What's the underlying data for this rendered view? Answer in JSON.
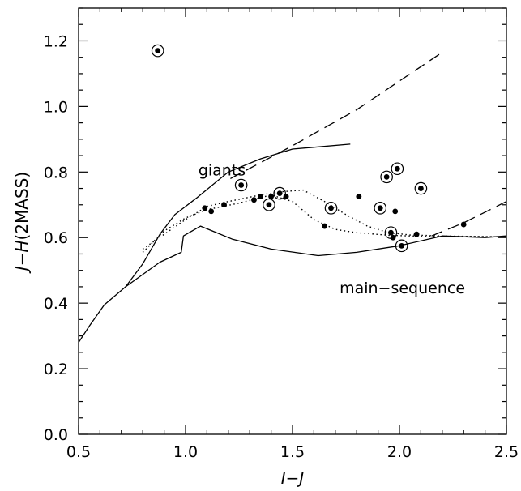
{
  "chart_data": {
    "type": "scatter",
    "title": "",
    "xlabel": "I−J",
    "ylabel_italic": "J−H",
    "ylabel_rest": "(2MASS)",
    "xlim": [
      0.5,
      2.5
    ],
    "ylim": [
      0.0,
      1.3
    ],
    "xticks": [
      0.5,
      1.0,
      1.5,
      2.0,
      2.5
    ],
    "xtick_labels": [
      "0.5",
      "1.0",
      "1.5",
      "2.0",
      "2.5"
    ],
    "yticks": [
      0.0,
      0.2,
      0.4,
      0.6,
      0.8,
      1.0,
      1.2
    ],
    "ytick_labels": [
      "0.0",
      "0.2",
      "0.4",
      "0.6",
      "0.8",
      "1.0",
      "1.2"
    ],
    "grid": false,
    "annotations": [
      {
        "text": "giants",
        "x": 1.06,
        "y": 0.79
      },
      {
        "text": "main−sequence",
        "x": 1.72,
        "y": 0.43
      }
    ],
    "lines": [
      {
        "name": "giants",
        "style": "solid",
        "points": [
          [
            0.72,
            0.45
          ],
          [
            0.8,
            0.52
          ],
          [
            0.88,
            0.61
          ],
          [
            0.95,
            0.67
          ],
          [
            1.05,
            0.72
          ],
          [
            1.2,
            0.8
          ],
          [
            1.35,
            0.84
          ],
          [
            1.5,
            0.87
          ],
          [
            1.77,
            0.885
          ]
        ]
      },
      {
        "name": "main-sequence",
        "style": "solid",
        "points": [
          [
            0.5,
            0.28
          ],
          [
            0.55,
            0.33
          ],
          [
            0.62,
            0.395
          ],
          [
            0.72,
            0.45
          ],
          [
            0.88,
            0.525
          ],
          [
            0.98,
            0.555
          ],
          [
            0.99,
            0.605
          ],
          [
            1.07,
            0.635
          ],
          [
            1.22,
            0.595
          ],
          [
            1.4,
            0.565
          ],
          [
            1.62,
            0.545
          ],
          [
            1.8,
            0.555
          ],
          [
            2.0,
            0.575
          ],
          [
            2.2,
            0.605
          ],
          [
            2.4,
            0.6
          ],
          [
            2.5,
            0.605
          ]
        ]
      },
      {
        "name": "giants-extended",
        "style": "dashed",
        "points": [
          [
            1.21,
            0.78
          ],
          [
            1.5,
            0.88
          ],
          [
            1.8,
            0.99
          ],
          [
            2.2,
            1.165
          ]
        ]
      },
      {
        "name": "dashed-tail",
        "style": "dashed",
        "points": [
          [
            2.15,
            0.605
          ],
          [
            2.3,
            0.645
          ],
          [
            2.5,
            0.71
          ]
        ]
      },
      {
        "name": "dotted-model-1",
        "style": "dotted",
        "points": [
          [
            0.8,
            0.565
          ],
          [
            0.9,
            0.61
          ],
          [
            1.0,
            0.655
          ],
          [
            1.1,
            0.695
          ],
          [
            1.2,
            0.71
          ],
          [
            1.35,
            0.73
          ],
          [
            1.45,
            0.74
          ],
          [
            1.55,
            0.745
          ],
          [
            1.65,
            0.71
          ],
          [
            1.75,
            0.67
          ],
          [
            1.85,
            0.635
          ],
          [
            1.95,
            0.615
          ],
          [
            2.05,
            0.608
          ],
          [
            2.2,
            0.605
          ],
          [
            2.5,
            0.602
          ]
        ]
      },
      {
        "name": "dotted-model-2",
        "style": "dotted",
        "points": [
          [
            0.8,
            0.555
          ],
          [
            0.9,
            0.62
          ],
          [
            1.0,
            0.66
          ],
          [
            1.1,
            0.685
          ],
          [
            1.25,
            0.705
          ],
          [
            1.4,
            0.73
          ],
          [
            1.5,
            0.71
          ],
          [
            1.6,
            0.655
          ],
          [
            1.7,
            0.625
          ],
          [
            1.8,
            0.615
          ],
          [
            1.95,
            0.607
          ],
          [
            2.1,
            0.604
          ],
          [
            2.5,
            0.602
          ]
        ]
      }
    ],
    "points": [
      {
        "x": 0.87,
        "y": 1.17,
        "circled": true
      },
      {
        "x": 1.09,
        "y": 0.69,
        "circled": false
      },
      {
        "x": 1.12,
        "y": 0.68,
        "circled": false
      },
      {
        "x": 1.18,
        "y": 0.7,
        "circled": false
      },
      {
        "x": 1.26,
        "y": 0.76,
        "circled": true
      },
      {
        "x": 1.32,
        "y": 0.715,
        "circled": false
      },
      {
        "x": 1.35,
        "y": 0.725,
        "circled": false
      },
      {
        "x": 1.39,
        "y": 0.7,
        "circled": true
      },
      {
        "x": 1.4,
        "y": 0.725,
        "circled": false
      },
      {
        "x": 1.44,
        "y": 0.735,
        "circled": true
      },
      {
        "x": 1.47,
        "y": 0.725,
        "circled": false
      },
      {
        "x": 1.65,
        "y": 0.635,
        "circled": false
      },
      {
        "x": 1.68,
        "y": 0.69,
        "circled": true
      },
      {
        "x": 1.81,
        "y": 0.725,
        "circled": false
      },
      {
        "x": 1.91,
        "y": 0.69,
        "circled": true
      },
      {
        "x": 1.94,
        "y": 0.785,
        "circled": true
      },
      {
        "x": 1.96,
        "y": 0.615,
        "circled": true
      },
      {
        "x": 1.97,
        "y": 0.6,
        "circled": false
      },
      {
        "x": 1.98,
        "y": 0.68,
        "circled": false
      },
      {
        "x": 1.99,
        "y": 0.81,
        "circled": true
      },
      {
        "x": 2.01,
        "y": 0.575,
        "circled": true
      },
      {
        "x": 2.08,
        "y": 0.61,
        "circled": false
      },
      {
        "x": 2.1,
        "y": 0.75,
        "circled": true
      },
      {
        "x": 2.3,
        "y": 0.64,
        "circled": false
      }
    ]
  }
}
